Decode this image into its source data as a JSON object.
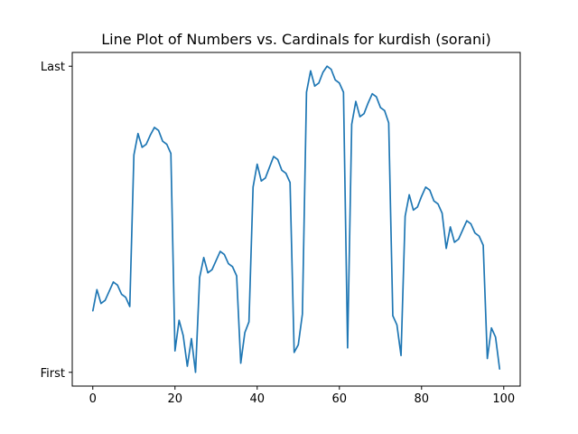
{
  "chart_data": {
    "type": "line",
    "title": "Line Plot of Numbers vs. Cardinals for kurdish (sorani)",
    "xlabel": "",
    "ylabel": "",
    "xlim": [
      -5,
      104
    ],
    "ylim": [
      -0.045,
      1.045
    ],
    "x_ticks": [
      0,
      20,
      40,
      60,
      80,
      100
    ],
    "y_ticks": [
      {
        "value": 0,
        "label": "First"
      },
      {
        "value": 1,
        "label": "Last"
      }
    ],
    "grid": false,
    "color": "#1f77b4",
    "series": [
      {
        "x": [
          0,
          1,
          2,
          3,
          4,
          5,
          6,
          7,
          8,
          9,
          10,
          11,
          12,
          13,
          14,
          15,
          16,
          17,
          18,
          19,
          20,
          21,
          22,
          23,
          24,
          25,
          26,
          27,
          28,
          29,
          30,
          31,
          32,
          33,
          34,
          35,
          36,
          37,
          38,
          39,
          40,
          41,
          42,
          43,
          44,
          45,
          46,
          47,
          48,
          49,
          50,
          51,
          52,
          53,
          54,
          55,
          56,
          57,
          58,
          59,
          60,
          61,
          62,
          63,
          64,
          65,
          66,
          67,
          68,
          69,
          70,
          71,
          72,
          73,
          74,
          75,
          76,
          77,
          78,
          79,
          80,
          81,
          82,
          83,
          84,
          85,
          86,
          87,
          88,
          89,
          90,
          91,
          92,
          93,
          94,
          95,
          96,
          97,
          98,
          99
        ],
        "y": [
          0.2,
          0.27,
          0.225,
          0.235,
          0.265,
          0.295,
          0.285,
          0.255,
          0.245,
          0.215,
          0.71,
          0.78,
          0.735,
          0.745,
          0.775,
          0.8,
          0.79,
          0.755,
          0.745,
          0.715,
          0.07,
          0.17,
          0.12,
          0.02,
          0.11,
          0,
          0.31,
          0.375,
          0.325,
          0.335,
          0.365,
          0.395,
          0.385,
          0.355,
          0.345,
          0.315,
          0.03,
          0.13,
          0.165,
          0.605,
          0.68,
          0.625,
          0.635,
          0.67,
          0.705,
          0.695,
          0.66,
          0.65,
          0.62,
          0.065,
          0.09,
          0.19,
          0.915,
          0.985,
          0.935,
          0.945,
          0.98,
          1,
          0.99,
          0.955,
          0.945,
          0.915,
          0.08,
          0.81,
          0.885,
          0.835,
          0.845,
          0.88,
          0.91,
          0.9,
          0.865,
          0.855,
          0.815,
          0.185,
          0.155,
          0.055,
          0.51,
          0.58,
          0.53,
          0.54,
          0.575,
          0.605,
          0.595,
          0.56,
          0.55,
          0.52,
          0.405,
          0.475,
          0.425,
          0.435,
          0.465,
          0.495,
          0.485,
          0.455,
          0.445,
          0.415,
          0.045,
          0.145,
          0.115,
          0.01
        ]
      }
    ]
  }
}
